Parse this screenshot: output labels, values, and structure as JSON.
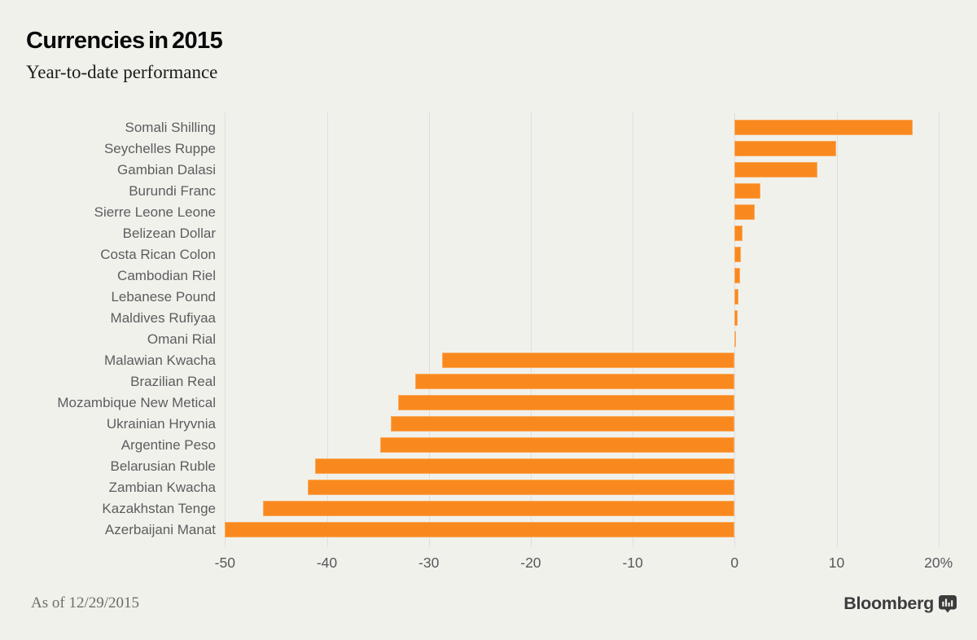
{
  "header": {
    "title": "Currencies in 2015",
    "subtitle": "Year-to-date performance"
  },
  "chart_data": {
    "type": "bar",
    "orientation": "horizontal",
    "title": "Currencies in 2015",
    "subtitle": "Year-to-date performance",
    "categories": [
      "Somali Shilling",
      "Seychelles Ruppe",
      "Gambian Dalasi",
      "Burundi Franc",
      "Sierre Leone Leone",
      "Belizean Dollar",
      "Costa Rican Colon",
      "Cambodian Riel",
      "Lebanese Pound",
      "Maldives Rufiyaa",
      "Omani Rial",
      "Malawian Kwacha",
      "Brazilian Real",
      "Mozambique New Metical",
      "Ukrainian Hryvnia",
      "Argentine Peso",
      "Belarusian Ruble",
      "Zambian Kwacha",
      "Kazakhstan Tenge",
      "Azerbaijani Manat"
    ],
    "values": [
      17.5,
      10.0,
      8.1,
      2.5,
      2.0,
      0.75,
      0.65,
      0.55,
      0.35,
      0.3,
      0.15,
      -28.7,
      -31.3,
      -33.0,
      -33.7,
      -34.8,
      -41.2,
      -41.9,
      -46.3,
      -50.0
    ],
    "unit": "%",
    "xticks": [
      -50,
      -40,
      -30,
      -20,
      -10,
      0,
      10,
      20
    ],
    "xtick_labels": [
      "-50",
      "-40",
      "-30",
      "-20",
      "-10",
      "0",
      "10",
      "20%"
    ],
    "xlim": [
      -51,
      21.5
    ],
    "grid": true,
    "legend": false,
    "bar_color": "#f9891e",
    "background_color": "#f1f1ec",
    "gridline_color": "#dedee3"
  },
  "footer": {
    "as_of": "As of 12/29/2015",
    "brand": "Bloomberg",
    "brand_icon": "bar-chart-bubble-icon"
  }
}
